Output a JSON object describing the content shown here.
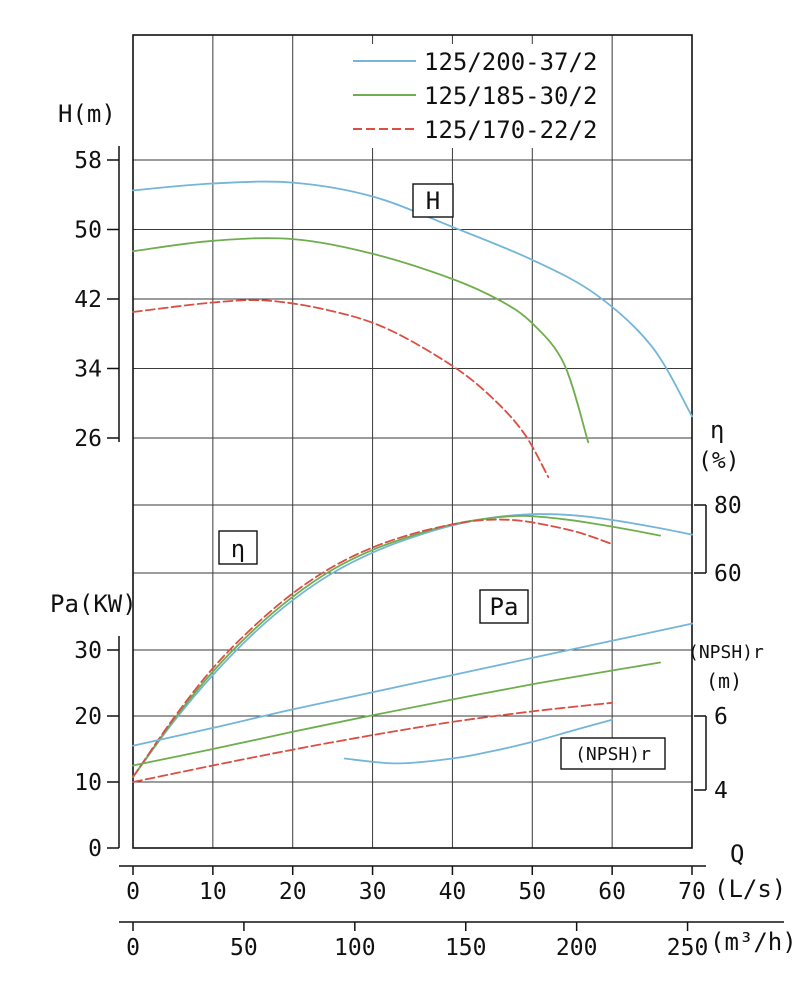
{
  "legend": {
    "items": [
      {
        "label": "125/200-37/2",
        "color": "#74b6d8",
        "dash": ""
      },
      {
        "label": "125/185-30/2",
        "color": "#6fae4e",
        "dash": ""
      },
      {
        "label": "125/170-22/2",
        "color": "#d94f43",
        "dash": "9 4"
      }
    ]
  },
  "annotations": {
    "h_box": "H",
    "eta_box": "η",
    "pa_box": "Pa",
    "npsh_box": "(NPSH)r"
  },
  "chart_data": {
    "type": "line",
    "title": "",
    "grid": true,
    "x_axis": {
      "label": "Q",
      "unit_primary": "(L/s)",
      "ticks_primary": [
        0,
        10,
        20,
        30,
        40,
        50,
        60,
        70
      ],
      "unit_secondary": "(m³/h)",
      "ticks_secondary": [
        0,
        50,
        100,
        150,
        200,
        250
      ],
      "secondary_to_primary_factor": 3.6
    },
    "axes": {
      "H": {
        "label": "H(m)",
        "ticks": [
          26,
          34,
          42,
          50,
          58
        ],
        "side": "left"
      },
      "Pa": {
        "label": "Pa(KW)",
        "ticks": [
          0,
          10,
          20,
          30
        ],
        "side": "left"
      },
      "eta": {
        "label": "η",
        "unit": "(%)",
        "ticks": [
          60,
          80
        ],
        "side": "right"
      },
      "npsh": {
        "label": "(NPSH)r",
        "unit": "(m)",
        "ticks": [
          4,
          6
        ],
        "side": "right"
      }
    },
    "series": [
      {
        "family": "H",
        "axis": "H",
        "curves": [
          {
            "pump_index": 0,
            "points": [
              [
                0,
                54.5
              ],
              [
                10,
                55.3
              ],
              [
                20,
                55.4
              ],
              [
                30,
                53.8
              ],
              [
                40,
                50.3
              ],
              [
                50,
                46.5
              ],
              [
                58,
                42.5
              ],
              [
                65,
                36.5
              ],
              [
                70,
                28.5
              ]
            ]
          },
          {
            "pump_index": 1,
            "points": [
              [
                0,
                47.5
              ],
              [
                10,
                48.7
              ],
              [
                20,
                48.9
              ],
              [
                30,
                47.2
              ],
              [
                40,
                44.3
              ],
              [
                46,
                41.8
              ],
              [
                50,
                39.2
              ],
              [
                54,
                34.5
              ],
              [
                57,
                25.5
              ]
            ]
          },
          {
            "pump_index": 2,
            "points": [
              [
                0,
                40.5
              ],
              [
                10,
                41.6
              ],
              [
                17,
                41.8
              ],
              [
                25,
                40.6
              ],
              [
                32,
                38.5
              ],
              [
                40,
                34.3
              ],
              [
                45,
                30.6
              ],
              [
                49,
                26.5
              ],
              [
                52,
                21.5
              ]
            ]
          }
        ]
      },
      {
        "family": "eta",
        "axis": "eta",
        "curves": [
          {
            "pump_index": 0,
            "points": [
              [
                0,
                0
              ],
              [
                5,
                16
              ],
              [
                10,
                30
              ],
              [
                15,
                42
              ],
              [
                20,
                52
              ],
              [
                25,
                60
              ],
              [
                30,
                66
              ],
              [
                35,
                70.5
              ],
              [
                40,
                74
              ],
              [
                45,
                76.3
              ],
              [
                50,
                77.3
              ],
              [
                55,
                77
              ],
              [
                60,
                75.6
              ],
              [
                65,
                73.6
              ],
              [
                70,
                71.3
              ]
            ]
          },
          {
            "pump_index": 1,
            "points": [
              [
                0,
                0
              ],
              [
                5,
                16.5
              ],
              [
                10,
                31
              ],
              [
                15,
                43
              ],
              [
                20,
                53
              ],
              [
                25,
                61
              ],
              [
                30,
                66.8
              ],
              [
                35,
                71
              ],
              [
                40,
                74.3
              ],
              [
                45,
                76.2
              ],
              [
                49,
                76.8
              ],
              [
                54,
                75.8
              ],
              [
                58,
                74.4
              ],
              [
                62,
                72.8
              ],
              [
                66,
                71
              ]
            ]
          },
          {
            "pump_index": 2,
            "points": [
              [
                0,
                0
              ],
              [
                5,
                17
              ],
              [
                10,
                32
              ],
              [
                15,
                44
              ],
              [
                20,
                54
              ],
              [
                25,
                61.8
              ],
              [
                30,
                67.5
              ],
              [
                35,
                71.5
              ],
              [
                40,
                74.3
              ],
              [
                44,
                75.6
              ],
              [
                48,
                75.5
              ],
              [
                52,
                74
              ],
              [
                56,
                71.8
              ],
              [
                60,
                68.5
              ]
            ]
          }
        ]
      },
      {
        "family": "Pa",
        "axis": "Pa",
        "curves": [
          {
            "pump_index": 0,
            "points": [
              [
                0,
                15.5
              ],
              [
                10,
                18.2
              ],
              [
                20,
                21
              ],
              [
                30,
                23.6
              ],
              [
                40,
                26.2
              ],
              [
                50,
                28.8
              ],
              [
                60,
                31.4
              ],
              [
                70,
                34
              ]
            ]
          },
          {
            "pump_index": 1,
            "points": [
              [
                0,
                12.5
              ],
              [
                10,
                15
              ],
              [
                20,
                17.6
              ],
              [
                30,
                20.1
              ],
              [
                40,
                22.5
              ],
              [
                50,
                24.8
              ],
              [
                60,
                26.9
              ],
              [
                66,
                28.1
              ]
            ]
          },
          {
            "pump_index": 2,
            "points": [
              [
                0,
                10
              ],
              [
                10,
                12.5
              ],
              [
                20,
                14.9
              ],
              [
                30,
                17.1
              ],
              [
                40,
                19.1
              ],
              [
                50,
                20.7
              ],
              [
                60,
                22
              ]
            ]
          }
        ]
      },
      {
        "family": "NPSH",
        "axis": "npsh",
        "curves": [
          {
            "pump_index": 0,
            "points": [
              [
                26.5,
                4.85
              ],
              [
                33,
                4.72
              ],
              [
                40,
                4.85
              ],
              [
                45,
                5.05
              ],
              [
                50,
                5.3
              ],
              [
                55,
                5.6
              ],
              [
                60,
                5.9
              ]
            ]
          }
        ]
      }
    ]
  }
}
